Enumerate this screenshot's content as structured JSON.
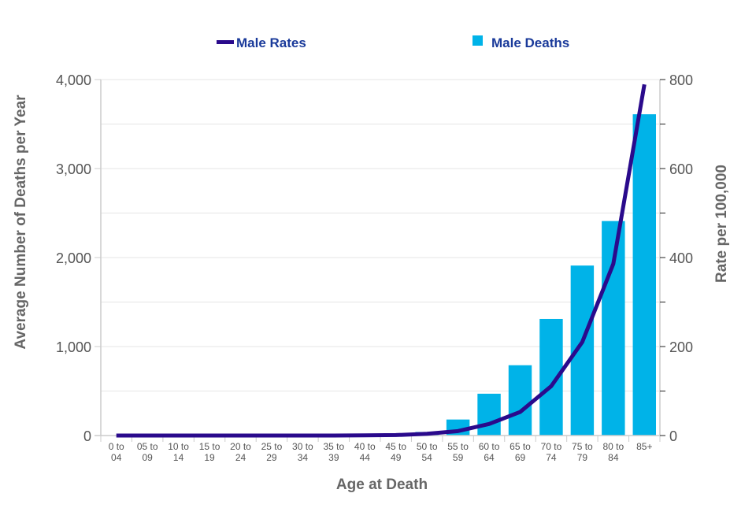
{
  "chart_data": {
    "type": "bar+line",
    "xlabel": "Age at Death",
    "ylabel": "Average Number of Deaths per Year",
    "y2label": "Rate per 100,000",
    "ylim": [
      0,
      4000
    ],
    "y2lim": [
      0,
      800
    ],
    "yticks": [
      "0",
      "1,000",
      "2,000",
      "3,000",
      "4,000"
    ],
    "y2ticks": [
      "0",
      "200",
      "400",
      "600",
      "800"
    ],
    "grid": true,
    "legend_position": "top",
    "categories": [
      [
        "0 to",
        "04"
      ],
      [
        "05 to",
        "09"
      ],
      [
        "10 to",
        "14"
      ],
      [
        "15 to",
        "19"
      ],
      [
        "20 to",
        "24"
      ],
      [
        "25 to",
        "29"
      ],
      [
        "30 to",
        "34"
      ],
      [
        "35 to",
        "39"
      ],
      [
        "40 to",
        "44"
      ],
      [
        "45 to",
        "49"
      ],
      [
        "50 to",
        "54"
      ],
      [
        "55 to",
        "59"
      ],
      [
        "60 to",
        "64"
      ],
      [
        "65 to",
        "69"
      ],
      [
        "70 to",
        "74"
      ],
      [
        "75 to",
        "79"
      ],
      [
        "80 to",
        "84"
      ],
      [
        "85+",
        ""
      ]
    ],
    "series": [
      {
        "name": "Male Deaths",
        "type": "bar",
        "axis": "left",
        "color": "#00b3e8",
        "values": [
          0,
          0,
          0,
          0,
          0,
          0,
          0,
          0,
          0,
          5,
          40,
          180,
          470,
          790,
          1310,
          1910,
          2410,
          3610
        ]
      },
      {
        "name": "Male Rates",
        "type": "line",
        "axis": "right",
        "color": "#2a0a8c",
        "values": [
          0,
          0,
          0,
          0,
          0,
          0,
          0,
          0,
          0.5,
          1,
          4,
          10,
          26,
          53,
          111,
          210,
          386,
          789
        ]
      }
    ]
  }
}
